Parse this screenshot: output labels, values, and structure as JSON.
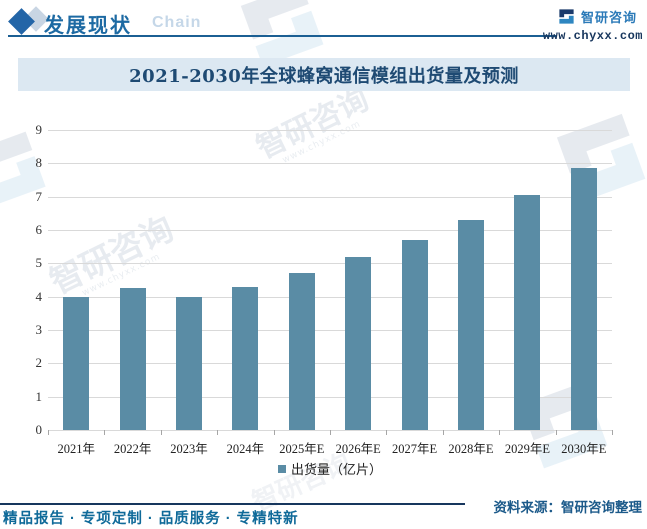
{
  "header": {
    "section_title": "发展现状",
    "section_subtitle": "Chain",
    "brand_name": "智研咨询",
    "brand_url": "www.chyxx.com"
  },
  "watermark": {
    "text": "智研咨询",
    "subtext": "www.chyxx.com"
  },
  "chart_data": {
    "type": "bar",
    "title": "2021-2030年全球蜂窝通信模组出货量及预测",
    "categories": [
      "2021年",
      "2022年",
      "2023年",
      "2024年",
      "2025年E",
      "2026年E",
      "2027年E",
      "2028年E",
      "2029年E",
      "2030年E"
    ],
    "values": [
      4.0,
      4.25,
      4.0,
      4.3,
      4.7,
      5.2,
      5.7,
      6.3,
      7.05,
      7.85
    ],
    "legend": [
      "出货量（亿片）"
    ],
    "xlabel": "",
    "ylabel": "",
    "ylim": [
      0,
      9
    ],
    "ytick_step": 1,
    "grid": true,
    "legend_position": "bottom",
    "bar_color": "#5a8ca5"
  },
  "footer": {
    "source": "资料来源：智研咨询整理",
    "tagline": "精品报告 · 专项定制 · 品质服务 · 专精特新"
  },
  "colors": {
    "accent_blue": "#1d6aa3",
    "navy": "#17365d",
    "title_band_bg": "#dce8f2",
    "bar": "#5a8ca5",
    "gridline": "#d9d9d9"
  }
}
